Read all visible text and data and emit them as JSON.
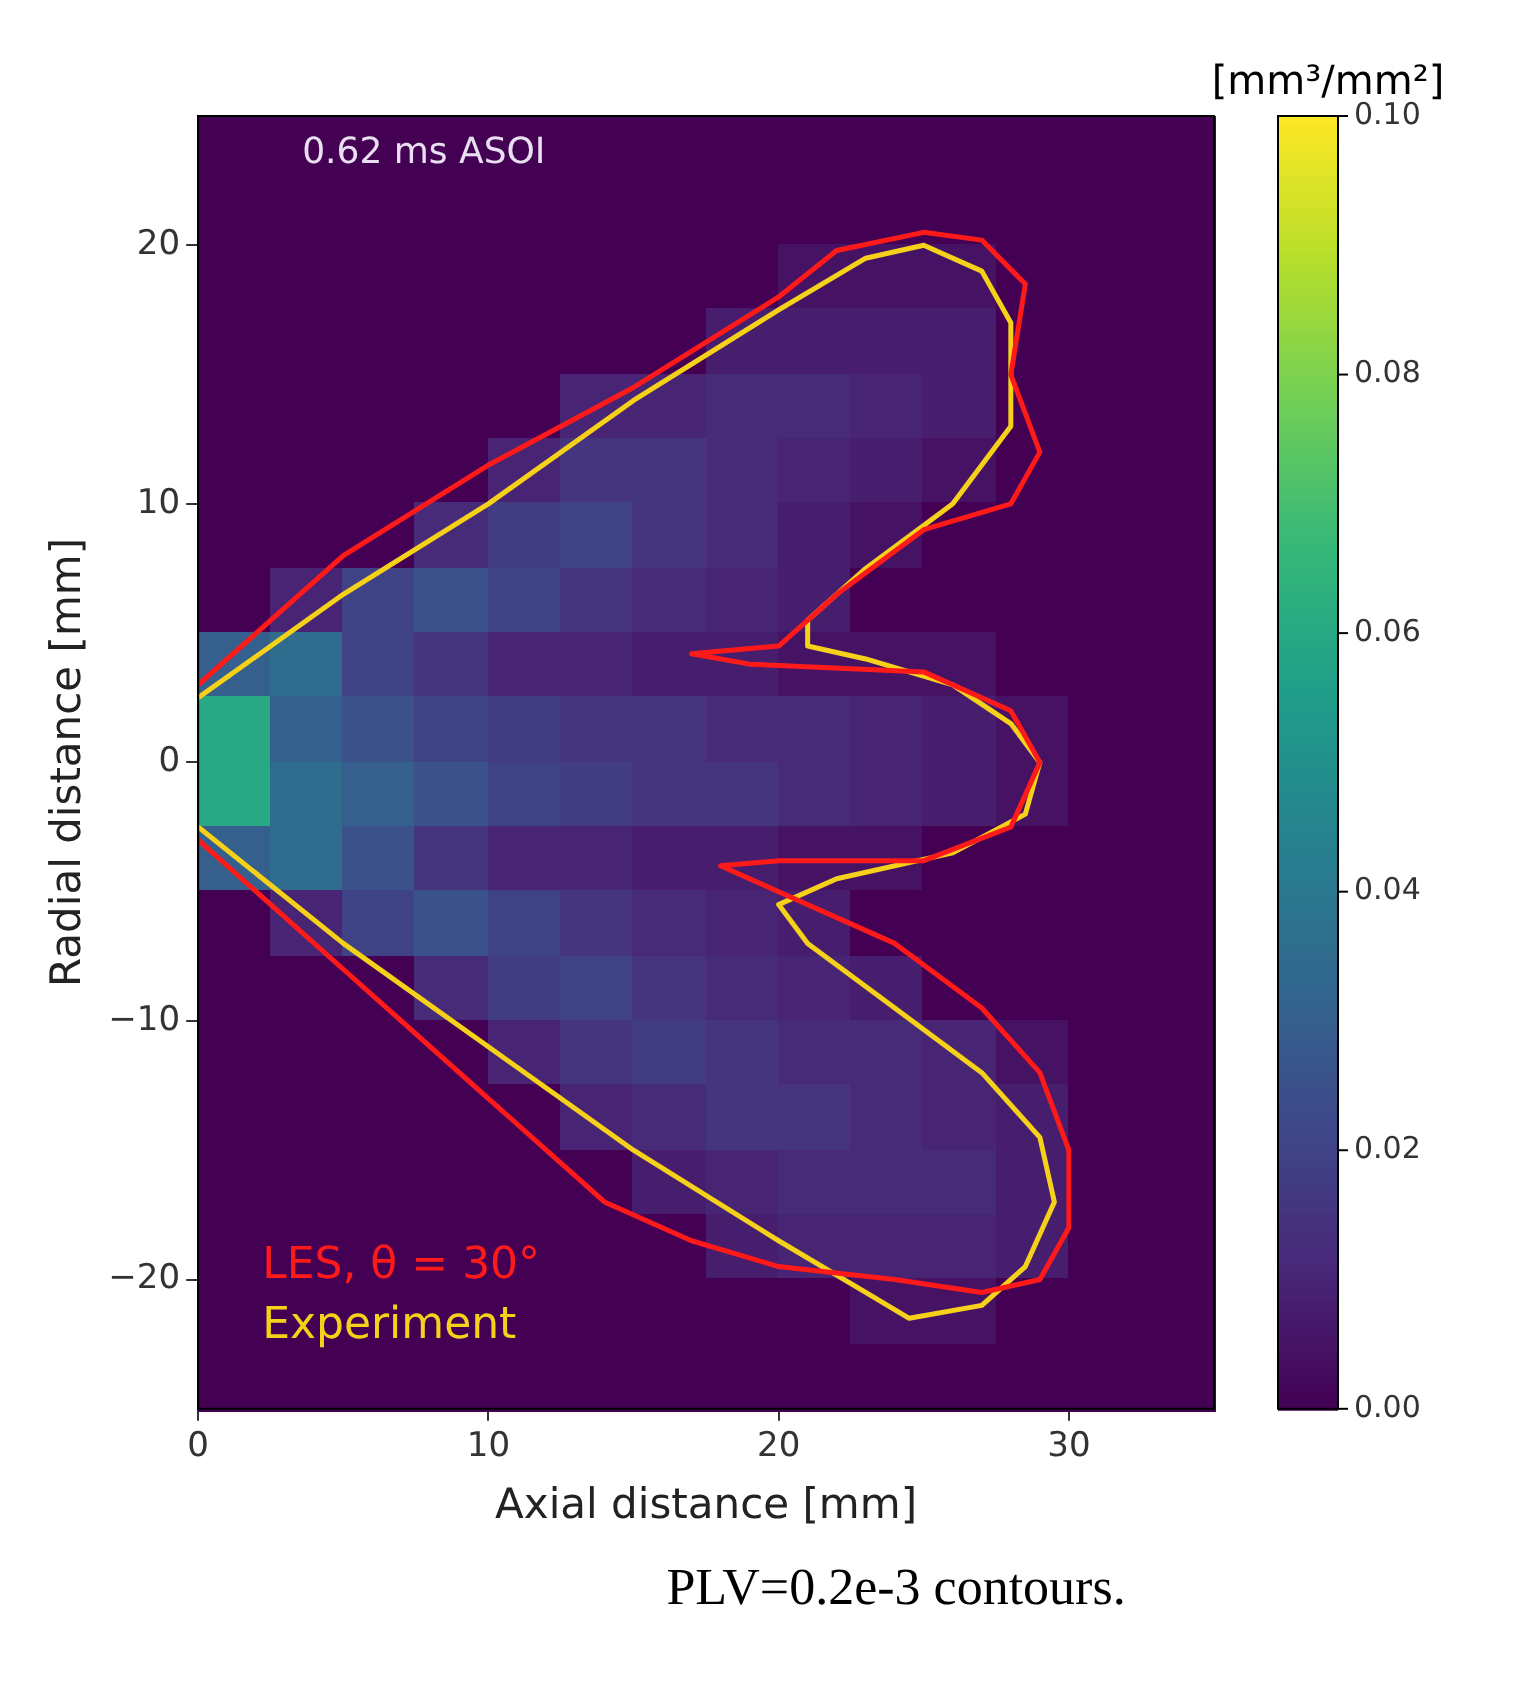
{
  "chart_data": {
    "type": "heatmap",
    "xlabel": "Axial distance [mm]",
    "ylabel": "Radial distance [mm]",
    "clabel": "[mm³/mm²]",
    "annotations": [
      "0.62 ms ASOI",
      "PLV=0.2e-3 contours."
    ],
    "xlim": [
      0,
      35
    ],
    "ylim": [
      -25,
      25
    ],
    "xticks": [
      0,
      10,
      20,
      30
    ],
    "yticks": [
      {
        "value": -20,
        "label": "−20"
      },
      {
        "value": -10,
        "label": "−10"
      },
      0,
      10,
      20
    ],
    "clim": [
      0,
      0.1
    ],
    "cticks": [
      {
        "value": 0,
        "label": "0.00"
      },
      {
        "value": 0.02,
        "label": "0.02"
      },
      {
        "value": 0.04,
        "label": "0.04"
      },
      {
        "value": 0.06,
        "label": "0.06"
      },
      {
        "value": 0.08,
        "label": "0.08"
      },
      {
        "value": 0.1,
        "label": "0.10"
      }
    ],
    "legend": "bottom left",
    "cells": [
      [
        0,
        0,
        0,
        0,
        0,
        0,
        0,
        0,
        0,
        0,
        0,
        0,
        0,
        0
      ],
      [
        0,
        0,
        0,
        0,
        0,
        0,
        0,
        0,
        0,
        0,
        0,
        0,
        0,
        0
      ],
      [
        0,
        0,
        0,
        0,
        0,
        0,
        0,
        0,
        0.005,
        0.005,
        0.005,
        0,
        0,
        0
      ],
      [
        0,
        0,
        0,
        0,
        0,
        0,
        0,
        0.008,
        0.008,
        0.008,
        0.008,
        0,
        0,
        0
      ],
      [
        0,
        0,
        0,
        0,
        0,
        0.01,
        0.01,
        0.012,
        0.012,
        0.01,
        0.008,
        0,
        0,
        0
      ],
      [
        0,
        0,
        0,
        0,
        0.01,
        0.015,
        0.015,
        0.012,
        0.01,
        0.008,
        0.005,
        0,
        0,
        0
      ],
      [
        0,
        0,
        0,
        0.012,
        0.018,
        0.02,
        0.015,
        0.012,
        0.008,
        0.005,
        0,
        0,
        0,
        0
      ],
      [
        0,
        0.01,
        0.02,
        0.025,
        0.02,
        0.015,
        0.012,
        0.01,
        0.008,
        0,
        0,
        0,
        0,
        0
      ],
      [
        0.03,
        0.035,
        0.02,
        0.015,
        0.01,
        0.01,
        0.008,
        0.008,
        0.005,
        0.005,
        0.005,
        0,
        0,
        0
      ],
      [
        0.06,
        0.03,
        0.025,
        0.02,
        0.018,
        0.015,
        0.015,
        0.012,
        0.012,
        0.01,
        0.008,
        0.005,
        0,
        0
      ],
      [
        0.06,
        0.035,
        0.03,
        0.025,
        0.02,
        0.018,
        0.015,
        0.015,
        0.012,
        0.01,
        0.008,
        0.005,
        0,
        0
      ],
      [
        0.03,
        0.035,
        0.025,
        0.015,
        0.01,
        0.01,
        0.008,
        0.008,
        0.005,
        0.005,
        0,
        0,
        0,
        0
      ],
      [
        0,
        0.01,
        0.02,
        0.025,
        0.02,
        0.015,
        0.012,
        0.01,
        0.008,
        0,
        0,
        0,
        0,
        0
      ],
      [
        0,
        0,
        0,
        0.012,
        0.018,
        0.02,
        0.015,
        0.012,
        0.01,
        0.008,
        0,
        0,
        0,
        0
      ],
      [
        0,
        0,
        0,
        0,
        0.01,
        0.015,
        0.018,
        0.015,
        0.012,
        0.012,
        0.01,
        0.005,
        0,
        0
      ],
      [
        0,
        0,
        0,
        0,
        0,
        0.01,
        0.012,
        0.015,
        0.015,
        0.012,
        0.01,
        0.008,
        0,
        0
      ],
      [
        0,
        0,
        0,
        0,
        0,
        0,
        0.008,
        0.01,
        0.012,
        0.012,
        0.012,
        0.008,
        0,
        0
      ],
      [
        0,
        0,
        0,
        0,
        0,
        0,
        0,
        0.008,
        0.01,
        0.01,
        0.01,
        0.008,
        0,
        0
      ],
      [
        0,
        0,
        0,
        0,
        0,
        0,
        0,
        0,
        0,
        0.005,
        0.005,
        0,
        0,
        0
      ],
      [
        0,
        0,
        0,
        0,
        0,
        0,
        0,
        0,
        0,
        0,
        0,
        0,
        0,
        0
      ]
    ],
    "series": [
      {
        "name": "LES, θ = 30°",
        "type": "line",
        "color": "#ff1a1a",
        "x": [
          0,
          5,
          10,
          15,
          20,
          22,
          25,
          27,
          28.5,
          28,
          29,
          28,
          25,
          22,
          20,
          17,
          19,
          25,
          28,
          29,
          28,
          25,
          20,
          18,
          20,
          24,
          27,
          29,
          30,
          30,
          29,
          27,
          24,
          20,
          17,
          14,
          10,
          5,
          2,
          0
        ],
        "values": [
          3,
          8,
          11.5,
          14.5,
          18,
          19.8,
          20.5,
          20.2,
          18.5,
          15,
          12,
          10,
          9,
          6.5,
          4.5,
          4.2,
          3.8,
          3.5,
          2,
          0,
          -2.5,
          -3.8,
          -3.8,
          -4,
          -5,
          -7,
          -9.5,
          -12,
          -15,
          -18,
          -20,
          -20.5,
          -20,
          -19.5,
          -18.5,
          -17,
          -13,
          -8,
          -5,
          -3
        ]
      },
      {
        "name": "Experiment",
        "type": "line",
        "color": "#f5d11a",
        "x": [
          0,
          5,
          10,
          15,
          20,
          23,
          25,
          27,
          28,
          28,
          26,
          23,
          21,
          21,
          23,
          26,
          28,
          29,
          28.5,
          26,
          22,
          20,
          21,
          24,
          27,
          29,
          29.5,
          28.5,
          27,
          24.5,
          23,
          20,
          15,
          10,
          5,
          0
        ],
        "values": [
          2.5,
          6.5,
          10,
          14,
          17.5,
          19.5,
          20,
          19,
          17,
          13,
          10,
          7.5,
          5.5,
          4.5,
          4,
          3,
          1.5,
          0,
          -2,
          -3.5,
          -4.5,
          -5.5,
          -7,
          -9.5,
          -12,
          -14.5,
          -17,
          -19.5,
          -21,
          -21.5,
          -20.5,
          -18.5,
          -15,
          -11,
          -7,
          -2.5
        ]
      }
    ]
  }
}
